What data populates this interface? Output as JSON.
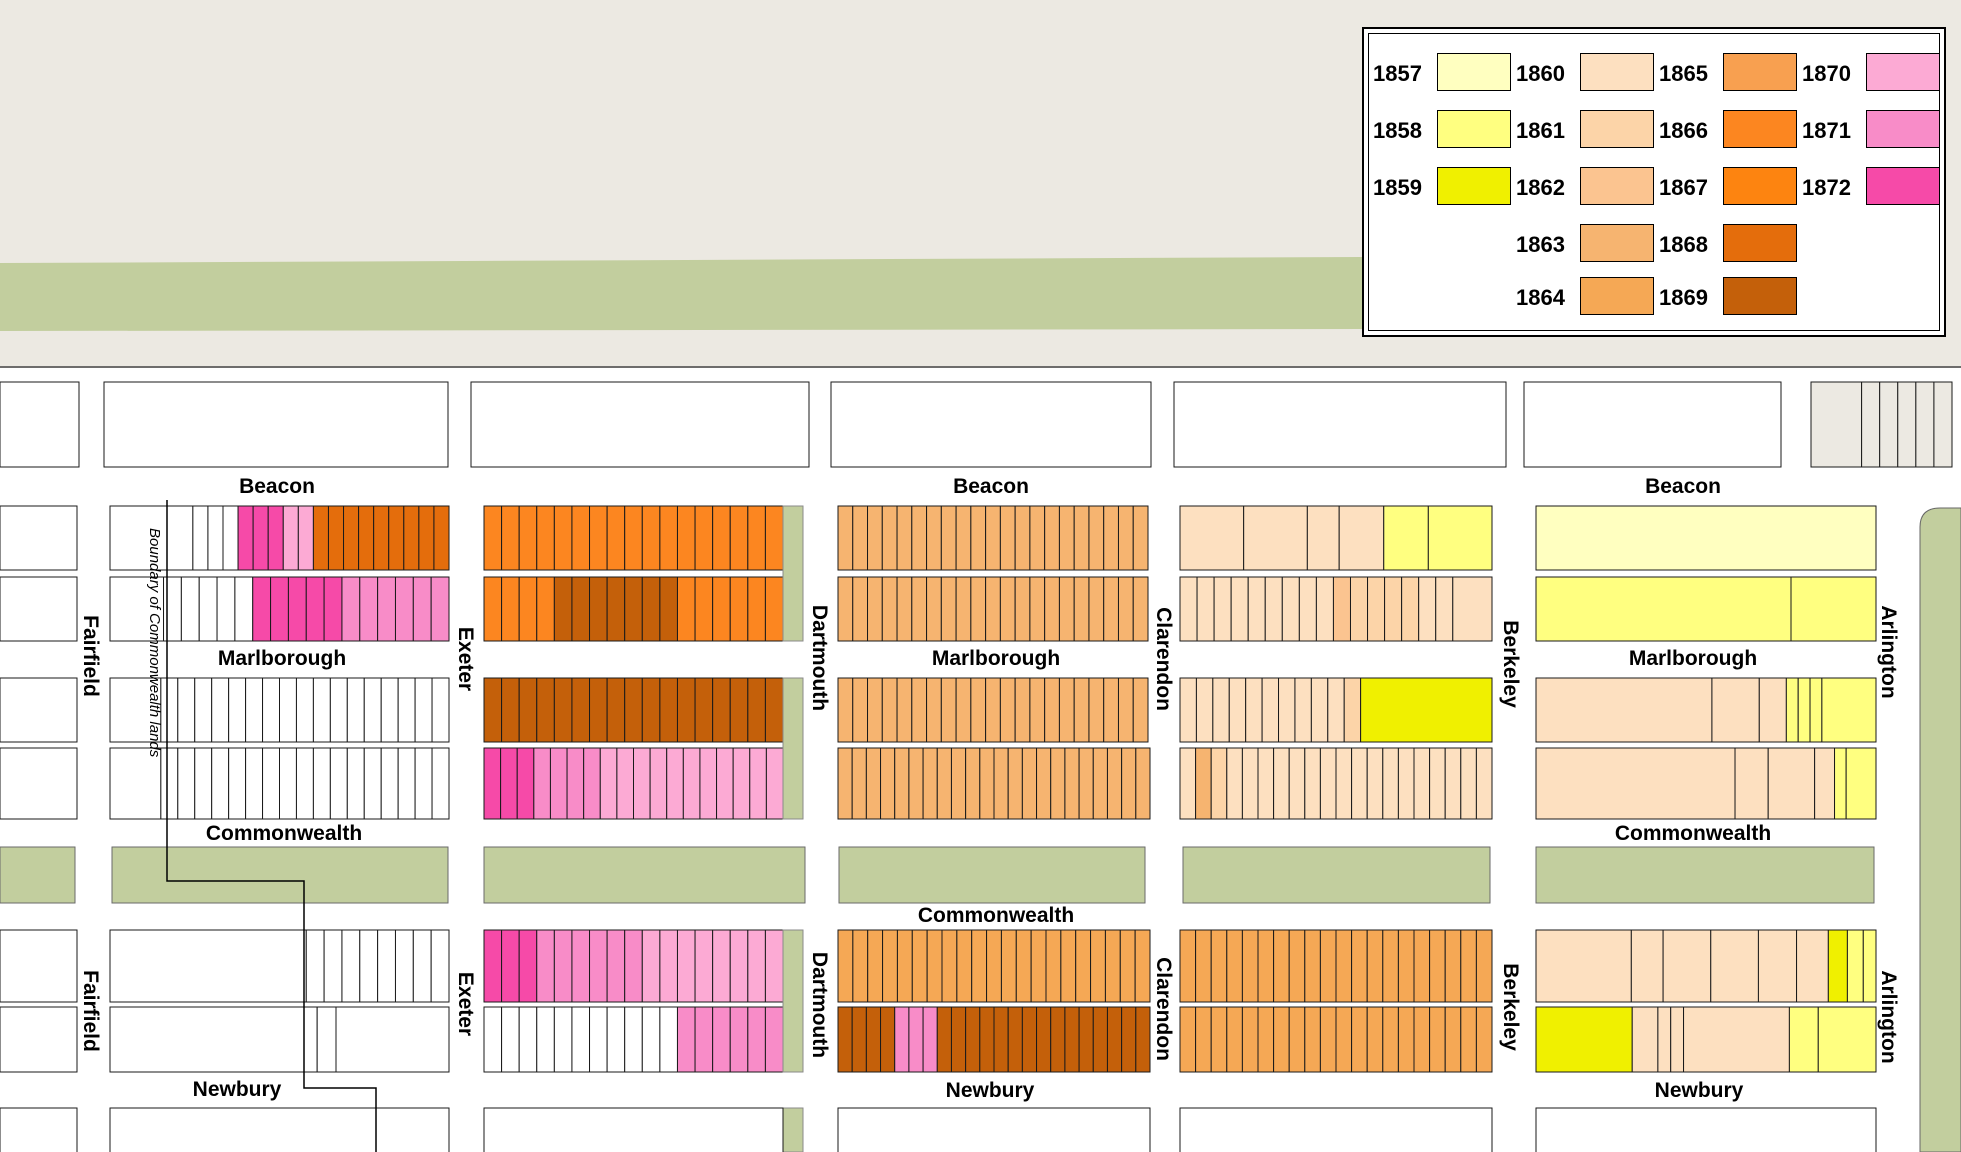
{
  "map": {
    "colors": {
      "background_land": "#ece9e2",
      "river_green": "#c2ce9e",
      "lot_border": "#1a1a1a",
      "unbuilt": "#ffffff"
    },
    "streets": {
      "beacon": "Beacon",
      "marlborough": "Marlborough",
      "commonwealth": "Commonwealth",
      "newbury": "Newbury",
      "fairfield": "Fairfield",
      "exeter": "Exeter",
      "dartmouth": "Dartmouth",
      "clarendon": "Clarendon",
      "berkeley": "Berkeley",
      "arlington": "Arlington"
    },
    "boundary_label": "Boundary of Commonwealth lands"
  },
  "legend": {
    "items": [
      {
        "year": "1857",
        "color": "#ffffc0"
      },
      {
        "year": "1858",
        "color": "#ffff80"
      },
      {
        "year": "1859",
        "color": "#f0f000"
      },
      {
        "year": "1860",
        "color": "#fde0c0"
      },
      {
        "year": "1861",
        "color": "#fcd4a8"
      },
      {
        "year": "1862",
        "color": "#fbc490"
      },
      {
        "year": "1863",
        "color": "#f6b470"
      },
      {
        "year": "1864",
        "color": "#f5a855"
      },
      {
        "year": "1865",
        "color": "#f8a050"
      },
      {
        "year": "1866",
        "color": "#fc8620"
      },
      {
        "year": "1867",
        "color": "#fd8410"
      },
      {
        "year": "1868",
        "color": "#e46d0c"
      },
      {
        "year": "1869",
        "color": "#c4600a"
      },
      {
        "year": "1870",
        "color": "#fcaad4"
      },
      {
        "year": "1871",
        "color": "#f88cc8"
      },
      {
        "year": "1872",
        "color": "#f64aa8"
      }
    ]
  }
}
